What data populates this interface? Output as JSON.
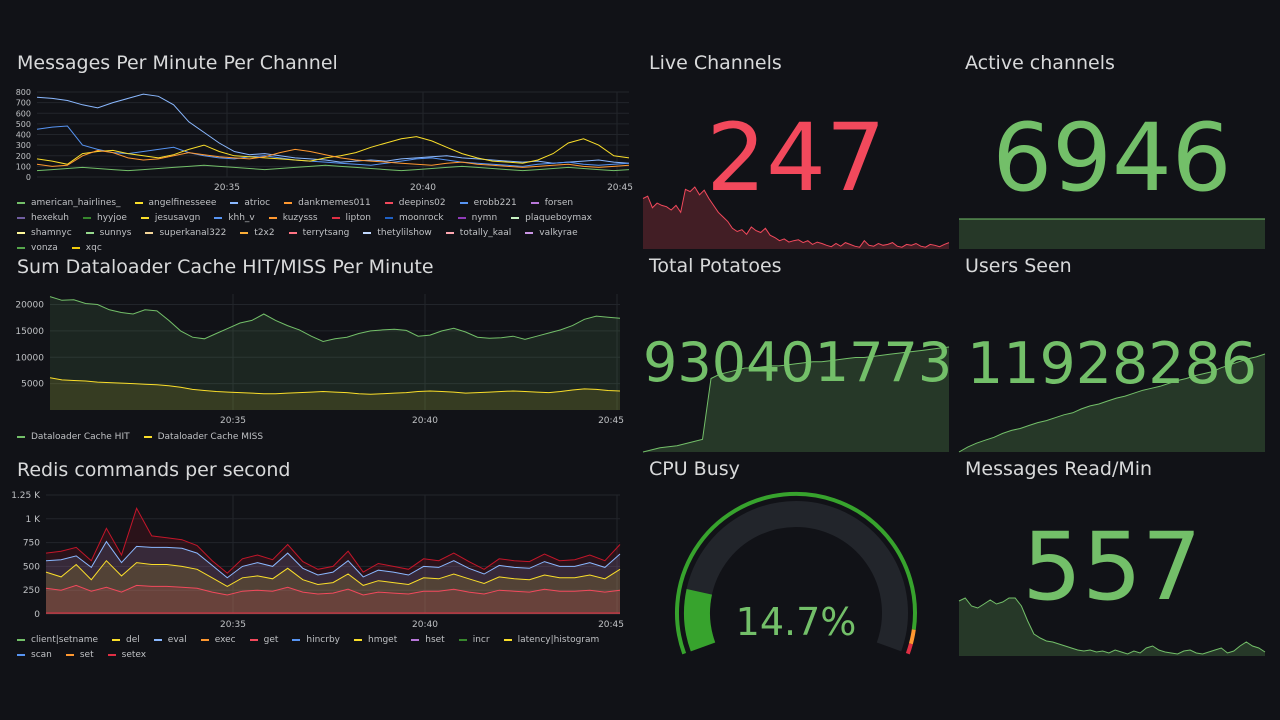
{
  "messages_panel": {
    "title": "Messages Per Minute Per Channel",
    "chart_data": {
      "type": "line",
      "title": "Messages Per Minute Per Channel",
      "ylim": [
        0,
        800
      ],
      "y_ticks": [
        "800",
        "700",
        "600",
        "500",
        "400",
        "300",
        "200",
        "100",
        "0"
      ],
      "x_ticks": [
        "20:35",
        "20:40",
        "20:45"
      ],
      "series_colors": [
        "#73bf69",
        "#fade2a",
        "#8ab8ff",
        "#ff9830",
        "#f2495c",
        "#5794f2",
        "#b877d9",
        "#705da0",
        "#37872d",
        "#fade2a",
        "#5794f2",
        "#ff9830",
        "#e02f44",
        "#1f60c4",
        "#8f3bb8",
        "#c8f2c2",
        "#fff899",
        "#96d98d",
        "#f4d598",
        "#fbad37",
        "#ff7383",
        "#c0d8ff",
        "#ffa6b0",
        "#ca95e5",
        "#56a64b",
        "#f2cc0c"
      ],
      "legend": [
        "american_hairlines_",
        "angelfinesseee",
        "atrioc",
        "dankmemes011",
        "deepins02",
        "erobb221",
        "forsen",
        "hexekuh",
        "hyyjoe",
        "jesusavgn",
        "khh_v",
        "kuzysss",
        "lipton",
        "moonrock",
        "nymn",
        "plaqueboymax",
        "shamnyc",
        "sunnys",
        "superkanal322",
        "t2x2",
        "terrytsang",
        "thetylilshow",
        "totally_kaal",
        "valkyrae",
        "vonza",
        "xqc"
      ],
      "series": [
        {
          "color": "#8ab8ff",
          "values": [
            750,
            740,
            720,
            680,
            650,
            700,
            740,
            780,
            760,
            680,
            520,
            420,
            320,
            240,
            210,
            220,
            200,
            180,
            170,
            160,
            140,
            150,
            160,
            150,
            170,
            180,
            190,
            200,
            180,
            170,
            160,
            150,
            140,
            150,
            130,
            140,
            150,
            160,
            140,
            130
          ]
        },
        {
          "color": "#5794f2",
          "values": [
            450,
            470,
            480,
            300,
            260,
            230,
            220,
            240,
            260,
            280,
            230,
            200,
            180,
            170,
            190,
            200,
            180,
            160,
            150,
            140,
            130,
            120,
            110,
            130,
            150,
            170,
            180,
            160,
            140,
            130,
            120,
            110,
            100,
            120,
            130,
            140,
            120,
            110,
            120,
            130
          ]
        },
        {
          "color": "#fade2a",
          "values": [
            170,
            150,
            120,
            220,
            240,
            250,
            220,
            200,
            180,
            210,
            260,
            300,
            240,
            200,
            190,
            180,
            170,
            160,
            150,
            180,
            200,
            230,
            280,
            320,
            360,
            380,
            340,
            280,
            220,
            180,
            150,
            140,
            130,
            160,
            220,
            320,
            360,
            300,
            200,
            180
          ]
        },
        {
          "color": "#ff9830",
          "values": [
            120,
            100,
            110,
            200,
            250,
            230,
            180,
            160,
            170,
            200,
            230,
            210,
            190,
            180,
            170,
            190,
            230,
            260,
            240,
            210,
            180,
            160,
            150,
            140,
            130,
            120,
            110,
            130,
            140,
            120,
            110,
            100,
            90,
            100,
            110,
            120,
            100,
            90,
            100,
            110
          ]
        },
        {
          "color": "#73bf69",
          "values": [
            60,
            70,
            80,
            90,
            80,
            70,
            60,
            70,
            80,
            90,
            100,
            110,
            100,
            90,
            80,
            70,
            80,
            90,
            100,
            110,
            100,
            90,
            80,
            70,
            60,
            70,
            80,
            90,
            100,
            90,
            80,
            70,
            60,
            70,
            80,
            90,
            80,
            70,
            60,
            70
          ]
        }
      ]
    }
  },
  "cache_panel": {
    "title": "Sum Dataloader Cache HIT/MISS Per Minute",
    "chart_data": {
      "type": "area",
      "title": "Sum Dataloader Cache HIT/MISS Per Minute",
      "ylim": [
        0,
        22000
      ],
      "y_ticks": [
        "20000",
        "15000",
        "10000",
        "5000"
      ],
      "x_ticks": [
        "20:35",
        "20:40",
        "20:45"
      ],
      "series": [
        {
          "name": "Dataloader Cache HIT",
          "color": "#73bf69",
          "values": [
            21500,
            20800,
            20900,
            20200,
            20000,
            19000,
            18500,
            18200,
            19000,
            18800,
            17000,
            15000,
            13800,
            13500,
            14500,
            15500,
            16500,
            17000,
            18200,
            17000,
            16000,
            15200,
            14000,
            13000,
            13500,
            13800,
            14500,
            15000,
            15200,
            15300,
            15100,
            14000,
            14200,
            15000,
            15500,
            14800,
            13800,
            13600,
            13700,
            14000,
            13400,
            14000,
            14600,
            15200,
            16000,
            17200,
            17800,
            17600,
            17400
          ]
        },
        {
          "name": "Dataloader Cache MISS",
          "color": "#fade2a",
          "values": [
            6100,
            5700,
            5600,
            5500,
            5300,
            5200,
            5100,
            5000,
            4900,
            4800,
            4600,
            4300,
            3900,
            3700,
            3500,
            3400,
            3300,
            3200,
            3100,
            3100,
            3200,
            3300,
            3400,
            3500,
            3400,
            3300,
            3100,
            3000,
            3100,
            3200,
            3300,
            3500,
            3600,
            3500,
            3400,
            3200,
            3300,
            3400,
            3500,
            3600,
            3500,
            3400,
            3300,
            3500,
            3800,
            4000,
            3900,
            3700,
            3600
          ]
        }
      ]
    }
  },
  "redis_panel": {
    "title": "Redis commands per second",
    "chart_data": {
      "type": "area",
      "title": "Redis commands per second",
      "ylim": [
        0,
        1250
      ],
      "y_ticks": [
        "1.25 K",
        "1 K",
        "750",
        "500",
        "250",
        "0"
      ],
      "x_ticks": [
        "20:35",
        "20:40",
        "20:45"
      ],
      "legend": [
        {
          "name": "client|setname",
          "color": "#73bf69"
        },
        {
          "name": "del",
          "color": "#fade2a"
        },
        {
          "name": "eval",
          "color": "#8ab8ff"
        },
        {
          "name": "exec",
          "color": "#ff9830"
        },
        {
          "name": "get",
          "color": "#f2495c"
        },
        {
          "name": "hincrby",
          "color": "#5794f2"
        },
        {
          "name": "hmget",
          "color": "#fade2a"
        },
        {
          "name": "hset",
          "color": "#b877d9"
        },
        {
          "name": "incr",
          "color": "#37872d"
        },
        {
          "name": "latency|histogram",
          "color": "#fade2a"
        },
        {
          "name": "scan",
          "color": "#5794f2"
        },
        {
          "name": "set",
          "color": "#ff9830"
        },
        {
          "name": "setex",
          "color": "#e02f44"
        }
      ],
      "series": [
        {
          "name": "setex",
          "color": "#c4162a",
          "values": [
            640,
            660,
            700,
            560,
            900,
            620,
            1110,
            820,
            800,
            780,
            720,
            560,
            430,
            580,
            620,
            570,
            730,
            550,
            470,
            500,
            660,
            440,
            530,
            500,
            470,
            580,
            560,
            640,
            550,
            470,
            580,
            560,
            550,
            630,
            560,
            570,
            620,
            560,
            730
          ]
        },
        {
          "name": "eval",
          "color": "#8ab8ff",
          "values": [
            560,
            570,
            610,
            490,
            760,
            540,
            710,
            700,
            700,
            690,
            640,
            510,
            380,
            500,
            540,
            500,
            640,
            480,
            410,
            440,
            560,
            390,
            460,
            440,
            410,
            500,
            490,
            560,
            480,
            420,
            510,
            490,
            480,
            550,
            500,
            500,
            540,
            490,
            630
          ]
        },
        {
          "name": "hmget",
          "color": "#fade2a",
          "values": [
            440,
            390,
            520,
            360,
            560,
            400,
            540,
            520,
            520,
            500,
            470,
            380,
            290,
            380,
            400,
            370,
            480,
            360,
            310,
            330,
            420,
            300,
            350,
            330,
            310,
            380,
            370,
            420,
            370,
            320,
            390,
            370,
            360,
            410,
            380,
            380,
            410,
            370,
            470
          ]
        },
        {
          "name": "get",
          "color": "#f2495c",
          "values": [
            270,
            250,
            300,
            240,
            280,
            230,
            300,
            290,
            290,
            280,
            270,
            230,
            200,
            240,
            250,
            240,
            280,
            230,
            210,
            220,
            260,
            200,
            230,
            220,
            210,
            240,
            240,
            260,
            230,
            210,
            250,
            240,
            230,
            260,
            240,
            240,
            250,
            230,
            250
          ]
        }
      ]
    }
  },
  "live_channels": {
    "title": "Live Channels",
    "value": "247",
    "color": "#f2495c",
    "spark": [
      110,
      115,
      90,
      100,
      95,
      92,
      85,
      95,
      80,
      130,
      125,
      135,
      118,
      128,
      110,
      95,
      80,
      70,
      60,
      45,
      38,
      42,
      32,
      48,
      40,
      36,
      45,
      30,
      25,
      18,
      22,
      15,
      18,
      20,
      14,
      18,
      10,
      15,
      12,
      8,
      5,
      12,
      6,
      14,
      10,
      6,
      4,
      18,
      8,
      6,
      12,
      8,
      10,
      14,
      6,
      4,
      10,
      8,
      12,
      6,
      4,
      10,
      8,
      5,
      10,
      14
    ]
  },
  "active_channels": {
    "title": "Active channels",
    "value": "6946",
    "color": "#73bf69",
    "spark": [
      100,
      100
    ]
  },
  "total_potatoes": {
    "title": "Total Potatoes",
    "value": "930401773",
    "color": "#73bf69",
    "spark": [
      0,
      2,
      4,
      5,
      6,
      8,
      10,
      12,
      70,
      74,
      76,
      78,
      80,
      80,
      81,
      82,
      82,
      83,
      84,
      85,
      86,
      86,
      87,
      88,
      89,
      90,
      90,
      91,
      92,
      93,
      94,
      95,
      96,
      97,
      98,
      99,
      100
    ]
  },
  "users_seen": {
    "title": "Users Seen",
    "value": "11928286",
    "color": "#73bf69",
    "spark": [
      0,
      5,
      9,
      12,
      15,
      19,
      22,
      24,
      27,
      30,
      32,
      35,
      38,
      40,
      44,
      47,
      49,
      52,
      55,
      57,
      60,
      63,
      65,
      67,
      70,
      73,
      75,
      78,
      80,
      82,
      86,
      89,
      92,
      95,
      97,
      100
    ]
  },
  "cpu_busy": {
    "title": "CPU Busy",
    "value": "14.7%",
    "percent": 14.7,
    "color": "#73bf69"
  },
  "messages_read": {
    "title": "Messages Read/Min",
    "value": "557",
    "color": "#73bf69",
    "spark": [
      55,
      58,
      50,
      48,
      52,
      56,
      52,
      54,
      58,
      58,
      50,
      35,
      22,
      18,
      15,
      14,
      12,
      10,
      8,
      6,
      5,
      6,
      4,
      5,
      3,
      6,
      4,
      2,
      5,
      3,
      8,
      10,
      6,
      4,
      3,
      2,
      5,
      6,
      3,
      2,
      4,
      6,
      8,
      3,
      5,
      10,
      14,
      10,
      8,
      4
    ]
  }
}
